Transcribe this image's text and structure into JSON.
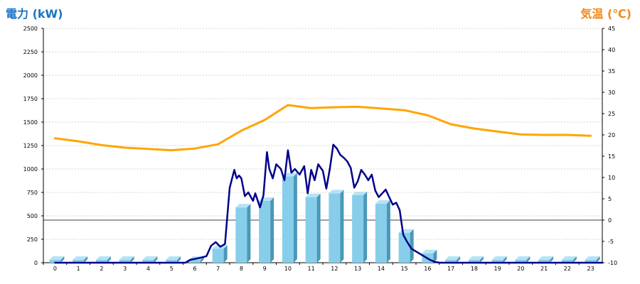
{
  "chart_data": {
    "type": "bar",
    "left_axis_title": "電力 (kW)",
    "right_axis_title": "気温 (℃)",
    "categories": [
      "0",
      "1",
      "2",
      "3",
      "4",
      "5",
      "6",
      "7",
      "8",
      "9",
      "10",
      "11",
      "12",
      "13",
      "14",
      "15",
      "16",
      "17",
      "18",
      "19",
      "20",
      "21",
      "22",
      "23"
    ],
    "left_ylim": [
      0,
      2500
    ],
    "left_yticks": [
      0,
      250,
      500,
      750,
      1000,
      1250,
      1500,
      1750,
      2000,
      2250,
      2500
    ],
    "right_ylim": [
      -10,
      45
    ],
    "right_yticks": [
      -10,
      -5,
      0,
      5,
      10,
      15,
      20,
      25,
      30,
      35,
      40,
      45
    ],
    "grid": true,
    "series": [
      {
        "kind": "bar",
        "axis": "left",
        "color": "#87ceeb",
        "values": [
          0,
          0,
          0,
          0,
          0,
          0,
          0,
          150,
          590,
          660,
          920,
          700,
          740,
          720,
          630,
          320,
          100,
          0,
          0,
          0,
          0,
          0,
          0,
          0
        ]
      },
      {
        "kind": "line",
        "axis": "left",
        "color": "#00008b",
        "points": [
          [
            0,
            0
          ],
          [
            5.6,
            0
          ],
          [
            5.8,
            30
          ],
          [
            6.2,
            50
          ],
          [
            6.5,
            70
          ],
          [
            6.7,
            180
          ],
          [
            6.9,
            220
          ],
          [
            7.1,
            170
          ],
          [
            7.3,
            200
          ],
          [
            7.5,
            800
          ],
          [
            7.7,
            990
          ],
          [
            7.8,
            900
          ],
          [
            7.9,
            930
          ],
          [
            8.0,
            900
          ],
          [
            8.15,
            710
          ],
          [
            8.3,
            750
          ],
          [
            8.5,
            660
          ],
          [
            8.6,
            740
          ],
          [
            8.8,
            590
          ],
          [
            8.95,
            720
          ],
          [
            9.1,
            1180
          ],
          [
            9.2,
            1000
          ],
          [
            9.35,
            900
          ],
          [
            9.5,
            1050
          ],
          [
            9.7,
            1000
          ],
          [
            9.85,
            880
          ],
          [
            10.0,
            1200
          ],
          [
            10.15,
            960
          ],
          [
            10.3,
            1000
          ],
          [
            10.5,
            940
          ],
          [
            10.7,
            1030
          ],
          [
            10.85,
            740
          ],
          [
            11.0,
            990
          ],
          [
            11.15,
            880
          ],
          [
            11.3,
            1050
          ],
          [
            11.5,
            980
          ],
          [
            11.65,
            790
          ],
          [
            11.8,
            1000
          ],
          [
            11.95,
            1260
          ],
          [
            12.1,
            1220
          ],
          [
            12.25,
            1150
          ],
          [
            12.4,
            1120
          ],
          [
            12.55,
            1080
          ],
          [
            12.7,
            1010
          ],
          [
            12.85,
            800
          ],
          [
            13.0,
            870
          ],
          [
            13.15,
            990
          ],
          [
            13.3,
            940
          ],
          [
            13.45,
            880
          ],
          [
            13.6,
            940
          ],
          [
            13.75,
            770
          ],
          [
            13.9,
            700
          ],
          [
            14.05,
            740
          ],
          [
            14.2,
            780
          ],
          [
            14.35,
            700
          ],
          [
            14.5,
            620
          ],
          [
            14.65,
            640
          ],
          [
            14.8,
            560
          ],
          [
            14.95,
            300
          ],
          [
            15.1,
            230
          ],
          [
            15.3,
            150
          ],
          [
            15.5,
            120
          ],
          [
            15.7,
            90
          ],
          [
            15.9,
            60
          ],
          [
            16.1,
            30
          ],
          [
            16.3,
            10
          ],
          [
            16.5,
            0
          ],
          [
            23.5,
            0
          ]
        ]
      },
      {
        "kind": "line",
        "axis": "right",
        "color": "#ffa500",
        "points": [
          [
            0,
            19.2
          ],
          [
            1,
            18.5
          ],
          [
            2,
            17.6
          ],
          [
            3,
            17.0
          ],
          [
            4,
            16.7
          ],
          [
            5,
            16.4
          ],
          [
            6,
            16.8
          ],
          [
            7,
            17.8
          ],
          [
            8,
            21.0
          ],
          [
            9,
            23.5
          ],
          [
            10,
            27.0
          ],
          [
            11,
            26.3
          ],
          [
            12,
            26.5
          ],
          [
            13,
            26.6
          ],
          [
            14,
            26.2
          ],
          [
            15,
            25.8
          ],
          [
            16,
            24.6
          ],
          [
            17,
            22.5
          ],
          [
            18,
            21.5
          ],
          [
            19,
            20.8
          ],
          [
            20,
            20.1
          ],
          [
            21,
            20.0
          ],
          [
            22,
            20.0
          ],
          [
            23,
            19.8
          ]
        ]
      }
    ]
  }
}
